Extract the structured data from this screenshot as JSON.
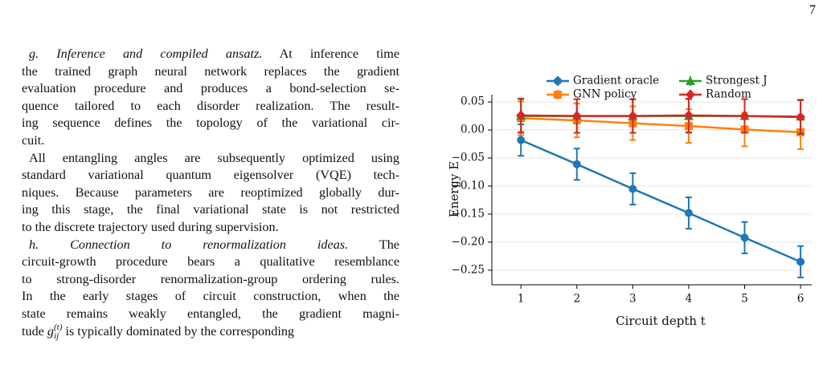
{
  "page_number": "7",
  "sections": [
    {
      "label": "g.",
      "heading": "Inference and compiled ansatz.",
      "paragraphs": [
        [
          "At inference time",
          "the trained graph neural network replaces the gradient",
          "evaluation procedure and produces a bond-selection se-",
          "quence tailored to each disorder realization. The result-",
          "ing sequence defines the topology of the variational cir-",
          "cuit."
        ],
        [
          "All entangling angles are subsequently optimized using",
          "standard variational quantum eigensolver (VQE) tech-",
          "niques. Because parameters are reoptimized globally dur-",
          "ing this stage, the final variational state is not restricted",
          "to the discrete trajectory used during supervision."
        ]
      ]
    },
    {
      "label": "h.",
      "heading": "Connection to renormalization ideas.",
      "paragraphs": [
        [
          "The",
          "circuit-growth procedure bears a qualitative resemblance",
          "to strong-disorder renormalization-group ordering rules.",
          "In the early stages of circuit construction, when the",
          "state remains weakly entangled, the gradient magni-",
          {
            "before": "tude",
            "symbol": "g",
            "sub": "ij",
            "sup": "(t)",
            "after": "is typically dominated by the corresponding"
          }
        ]
      ]
    }
  ],
  "chart_data": {
    "type": "line",
    "x_label": "Circuit depth t",
    "y_label": "Energy E",
    "x": [
      1,
      2,
      3,
      4,
      5,
      6
    ],
    "xlim": [
      0.48,
      6.2
    ],
    "xticks": [
      1,
      2,
      3,
      4,
      5,
      6
    ],
    "ylim": [
      -0.276,
      0.063
    ],
    "yticks": [
      {
        "value": 0.05,
        "label": "0.05"
      },
      {
        "value": 0,
        "label": "0.00"
      },
      {
        "value": -0.05,
        "label": "−0.05"
      },
      {
        "value": -0.1,
        "label": "−0.10"
      },
      {
        "value": -0.15,
        "label": "−0.15"
      },
      {
        "value": -0.2,
        "label": "−0.20"
      },
      {
        "value": -0.25,
        "label": "−0.25"
      }
    ],
    "grid": true,
    "legend": "top",
    "series": [
      {
        "name": "Gradient oracle",
        "color": "#1f77b4",
        "marker": "circle",
        "values": [
          -0.018,
          -0.061,
          -0.105,
          -0.148,
          -0.192,
          -0.235
        ],
        "errors": [
          0.028,
          0.028,
          0.028,
          0.028,
          0.028,
          0.028
        ]
      },
      {
        "name": "GNN policy",
        "color": "#ff7f0e",
        "marker": "square",
        "values": [
          0.021,
          0.017,
          0.012,
          0.007,
          0.001,
          -0.004
        ],
        "errors": [
          0.03,
          0.03,
          0.03,
          0.03,
          0.03,
          0.03
        ]
      },
      {
        "name": "Strongest J",
        "color": "#2ca02c",
        "marker": "triangle",
        "values": [
          0.025,
          0.025,
          0.025,
          0.025,
          0.025,
          0.024
        ],
        "errors": [
          0.03,
          0.03,
          0.03,
          0.03,
          0.03,
          0.03
        ]
      },
      {
        "name": "Random",
        "color": "#d62728",
        "marker": "diamond",
        "values": [
          0.026,
          0.025,
          0.025,
          0.026,
          0.025,
          0.023
        ],
        "errors": [
          0.03,
          0.03,
          0.03,
          0.03,
          0.03,
          0.03
        ]
      }
    ]
  }
}
